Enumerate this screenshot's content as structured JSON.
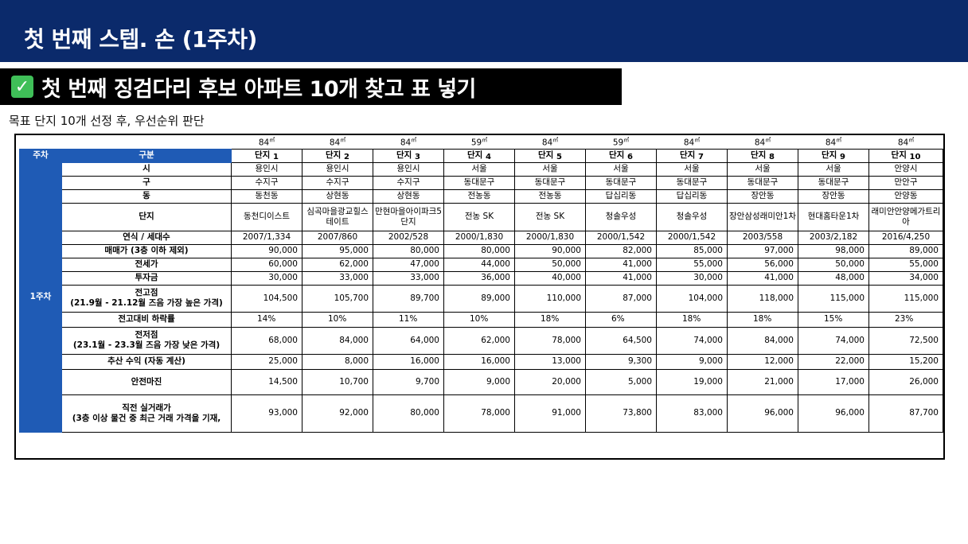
{
  "page_title": "첫 번째 스텝. 손 (1주차)",
  "banner": {
    "icon": "check-mark-icon",
    "title": "첫 번째 징검다리 후보 아파트 10개 찾고 표 넣기"
  },
  "subtitle": "목표 단지 10개 선정 후, 우선순위 판단",
  "table": {
    "header_week": "주차",
    "header_category": "구분",
    "week_label": "1주차",
    "units": [
      "84㎡",
      "84㎡",
      "84㎡",
      "59㎡",
      "84㎡",
      "59㎡",
      "84㎡",
      "84㎡",
      "84㎡",
      "84㎡"
    ],
    "complex_prefix": "단지",
    "complex_numbers": [
      "1",
      "2",
      "3",
      "4",
      "5",
      "6",
      "7",
      "8",
      "9",
      "10"
    ],
    "rows": [
      {
        "label": "시",
        "values": [
          "용인시",
          "용인시",
          "용인시",
          "서울",
          "서울",
          "서울",
          "서울",
          "서울",
          "서울",
          "안양시"
        ]
      },
      {
        "label": "구",
        "values": [
          "수지구",
          "수지구",
          "수지구",
          "동대문구",
          "동대문구",
          "동대문구",
          "동대문구",
          "동대문구",
          "동대문구",
          "만안구"
        ]
      },
      {
        "label": "동",
        "values": [
          "동천동",
          "상현동",
          "상현동",
          "전농동",
          "전농동",
          "답십리동",
          "답십리동",
          "장안동",
          "장안동",
          "안양동"
        ]
      },
      {
        "label": "단지",
        "values": [
          "동천디이스트",
          "심곡마을광교힐스테이트",
          "만현마을아이파크5단지",
          "전농 SK",
          "전농 SK",
          "청솔우성",
          "청솔우성",
          "장안삼성래미안1차",
          "현대홈타운1차",
          "래미안안양메가트리아"
        ]
      },
      {
        "label": "연식 / 세대수",
        "values": [
          "2007/1,334",
          "2007/860",
          "2002/528",
          "2000/1,830",
          "2000/1,830",
          "2000/1,542",
          "2000/1,542",
          "2003/558",
          "2003/2,182",
          "2016/4,250"
        ]
      },
      {
        "label": "매매가 (3층 이하 제외)",
        "values": [
          "90,000",
          "95,000",
          "80,000",
          "80,000",
          "90,000",
          "82,000",
          "85,000",
          "97,000",
          "98,000",
          "89,000"
        ]
      },
      {
        "label": "전세가",
        "values": [
          "60,000",
          "62,000",
          "47,000",
          "44,000",
          "50,000",
          "41,000",
          "55,000",
          "56,000",
          "50,000",
          "55,000"
        ]
      },
      {
        "label": "투자금",
        "values": [
          "30,000",
          "33,000",
          "33,000",
          "36,000",
          "40,000",
          "41,000",
          "30,000",
          "41,000",
          "48,000",
          "34,000"
        ]
      },
      {
        "label": "전고점",
        "label2": "(21.9월 - 21.12월 즈음 가장 높은 가격)",
        "values": [
          "104,500",
          "105,700",
          "89,700",
          "89,000",
          "110,000",
          "87,000",
          "104,000",
          "118,000",
          "115,000",
          "115,000"
        ]
      },
      {
        "label": "전고대비 하락률",
        "values": [
          "14%",
          "10%",
          "11%",
          "10%",
          "18%",
          "6%",
          "18%",
          "18%",
          "15%",
          "23%"
        ]
      },
      {
        "label": "전저점",
        "label2": "(23.1월 - 23.3월 즈음 가장 낮은 가격)",
        "values": [
          "68,000",
          "84,000",
          "64,000",
          "62,000",
          "78,000",
          "64,500",
          "74,000",
          "84,000",
          "74,000",
          "72,500"
        ]
      },
      {
        "label": "추산 수익 (자동 계산)",
        "values": [
          "25,000",
          "8,000",
          "16,000",
          "16,000",
          "13,000",
          "9,300",
          "9,000",
          "12,000",
          "22,000",
          "15,200"
        ]
      },
      {
        "label": "안전마진",
        "values": [
          "14,500",
          "10,700",
          "9,700",
          "9,000",
          "20,000",
          "5,000",
          "19,000",
          "21,000",
          "17,000",
          "26,000"
        ]
      },
      {
        "label": "직전 실거래가",
        "label2": "(3층 이상 물건 중 최근 거래 가격을 기재,",
        "values": [
          "93,000",
          "92,000",
          "80,000",
          "78,000",
          "91,000",
          "73,800",
          "83,000",
          "96,000",
          "96,000",
          "87,700"
        ]
      }
    ]
  },
  "colors": {
    "top_bar": "#0b2a6b",
    "header_blue": "#1f5bb5",
    "check_green": "#3fbf58"
  }
}
